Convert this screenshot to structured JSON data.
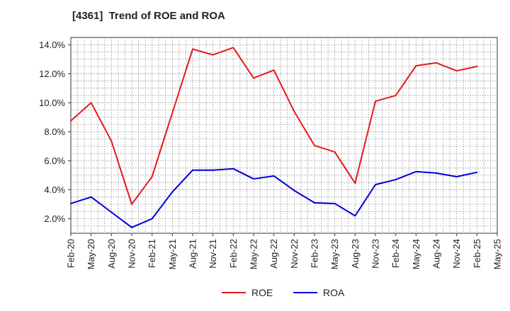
{
  "chart_data": {
    "type": "line",
    "title": "[4361]  Trend of ROE and ROA",
    "xlabel": "",
    "ylabel": "",
    "x": [
      "Feb-20",
      "May-20",
      "Aug-20",
      "Nov-20",
      "Feb-21",
      "May-21",
      "Aug-21",
      "Nov-21",
      "Feb-22",
      "May-22",
      "Aug-22",
      "Nov-22",
      "Feb-23",
      "May-23",
      "Aug-23",
      "Nov-23",
      "Feb-24",
      "May-24",
      "Aug-24",
      "Nov-24",
      "Feb-25",
      "May-25"
    ],
    "x_tick_labels": [
      "Feb-20",
      "May-20",
      "Aug-20",
      "Nov-20",
      "Feb-21",
      "May-21",
      "Aug-21",
      "Nov-21",
      "Feb-22",
      "May-22",
      "Aug-22",
      "Nov-22",
      "Feb-23",
      "May-23",
      "Aug-23",
      "Nov-23",
      "Feb-24",
      "May-24",
      "Aug-24",
      "Nov-24",
      "Feb-25",
      "May-25"
    ],
    "y_tick_labels": [
      "2.0%",
      "4.0%",
      "6.0%",
      "8.0%",
      "10.0%",
      "12.0%",
      "14.0%"
    ],
    "y_ticks": [
      2,
      4,
      6,
      8,
      10,
      12,
      14
    ],
    "ylim": [
      1.0,
      14.5
    ],
    "grid": true,
    "legend_position": "bottom-center",
    "series": [
      {
        "name": "ROE",
        "color": "#e31a1c",
        "values": [
          8.75,
          10.0,
          7.35,
          3.0,
          4.9,
          9.3,
          13.7,
          13.3,
          13.8,
          11.7,
          12.25,
          9.4,
          7.05,
          6.6,
          4.45,
          10.1,
          10.5,
          12.55,
          12.75,
          12.2,
          12.5,
          null
        ]
      },
      {
        "name": "ROA",
        "color": "#0000dd",
        "values": [
          3.05,
          3.5,
          2.45,
          1.4,
          2.0,
          3.85,
          5.35,
          5.35,
          5.45,
          4.75,
          4.95,
          3.95,
          3.1,
          3.05,
          2.2,
          4.35,
          4.7,
          5.25,
          5.15,
          4.9,
          5.2,
          null
        ]
      }
    ]
  }
}
